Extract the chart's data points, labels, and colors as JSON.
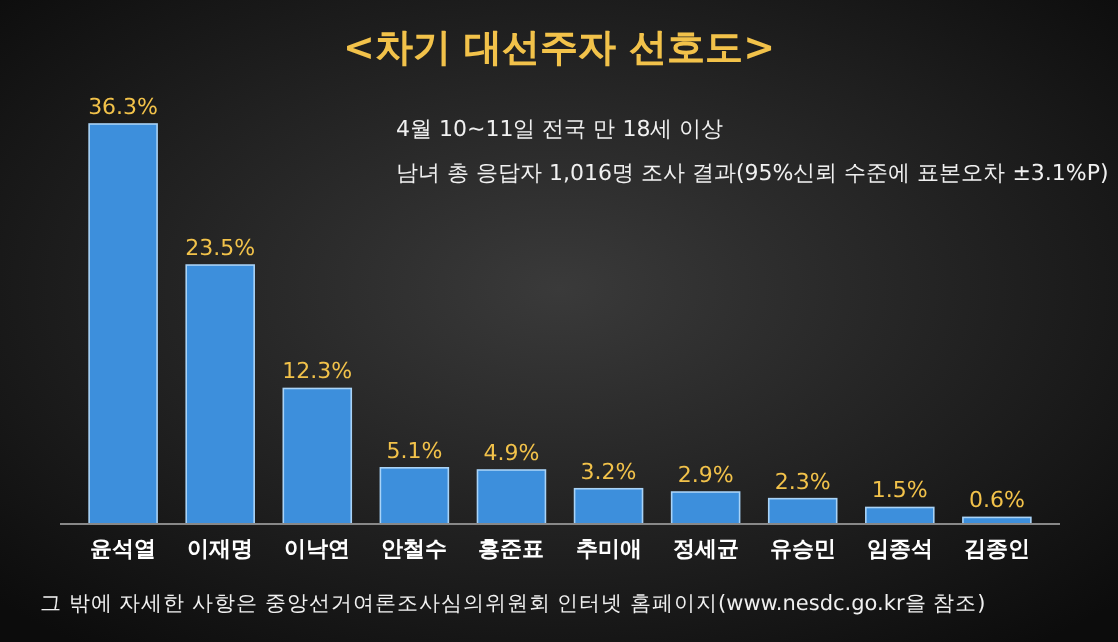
{
  "chart_data": {
    "type": "bar",
    "title": "<차기 대선주자 선호도>",
    "subtitle": "4월 10~11일 전국 만 18세 이상\n남녀 총 응답자 1,016명 조사 결과(95%신뢰 수준에 표본오차 ±3.1%P)",
    "categories": [
      "윤석열",
      "이재명",
      "이낙연",
      "안철수",
      "홍준표",
      "추미애",
      "정세균",
      "유승민",
      "임종석",
      "김종인"
    ],
    "values": [
      36.3,
      23.5,
      12.3,
      5.1,
      4.9,
      3.2,
      2.9,
      2.3,
      1.5,
      0.6
    ],
    "value_labels": [
      "36.3%",
      "23.5%",
      "12.3%",
      "5.1%",
      "4.9%",
      "3.2%",
      "2.9%",
      "2.3%",
      "1.5%",
      "0.6%"
    ],
    "color": "#3d8fdc",
    "annotations": [
      "그 밖에 자세한 사항은 중앙선거여론조사심의위원회 인터넷 홈페이지(www.nesdc.go.kr을 참조)"
    ]
  }
}
